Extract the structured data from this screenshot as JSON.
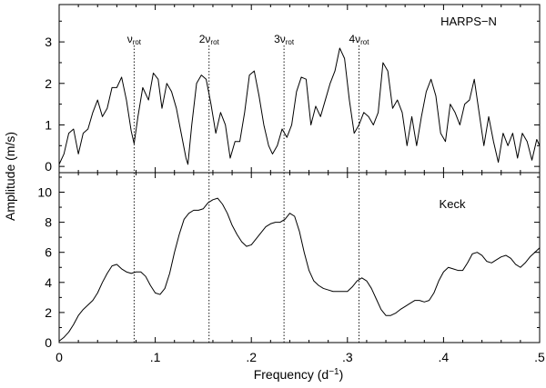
{
  "chart_data": {
    "type": "line",
    "xlabel": {
      "main": "Frequency (d",
      "sup": "−1",
      "end": ")"
    },
    "ylabel": "Amplitude (m/s)",
    "xlim": [
      0,
      0.5
    ],
    "x_ticks": [
      {
        "value": 0,
        "label": "0"
      },
      {
        "value": 0.1,
        "label": ".1"
      },
      {
        "value": 0.2,
        "label": ".2"
      },
      {
        "value": 0.3,
        "label": ".3"
      },
      {
        "value": 0.4,
        "label": ".4"
      },
      {
        "value": 0.5,
        "label": ".5"
      }
    ],
    "harmonics": [
      {
        "prefix": "",
        "symbol": "ν",
        "sub": "rot",
        "x": 0.078
      },
      {
        "prefix": "2",
        "symbol": "ν",
        "sub": "rot",
        "x": 0.156
      },
      {
        "prefix": "3",
        "symbol": "ν",
        "sub": "rot",
        "x": 0.234
      },
      {
        "prefix": "4",
        "symbol": "ν",
        "sub": "rot",
        "x": 0.312
      }
    ],
    "panels": [
      {
        "name": "HARPS−N",
        "ylim": [
          -0.15,
          3.9
        ],
        "y_ticks": [
          0,
          1,
          2,
          3
        ],
        "x": [
          0,
          0.005,
          0.01,
          0.015,
          0.02,
          0.025,
          0.03,
          0.035,
          0.04,
          0.045,
          0.05,
          0.055,
          0.06,
          0.065,
          0.07,
          0.075,
          0.078,
          0.082,
          0.087,
          0.093,
          0.098,
          0.103,
          0.107,
          0.112,
          0.117,
          0.122,
          0.127,
          0.132,
          0.134,
          0.138,
          0.143,
          0.148,
          0.153,
          0.158,
          0.163,
          0.168,
          0.173,
          0.178,
          0.183,
          0.188,
          0.193,
          0.198,
          0.203,
          0.208,
          0.213,
          0.218,
          0.222,
          0.227,
          0.232,
          0.237,
          0.242,
          0.247,
          0.252,
          0.257,
          0.262,
          0.267,
          0.272,
          0.277,
          0.282,
          0.287,
          0.292,
          0.297,
          0.302,
          0.307,
          0.312,
          0.317,
          0.322,
          0.327,
          0.332,
          0.337,
          0.342,
          0.347,
          0.352,
          0.357,
          0.362,
          0.367,
          0.372,
          0.377,
          0.382,
          0.387,
          0.392,
          0.397,
          0.402,
          0.407,
          0.412,
          0.417,
          0.422,
          0.427,
          0.432,
          0.437,
          0.442,
          0.447,
          0.452,
          0.457,
          0.462,
          0.467,
          0.472,
          0.477,
          0.482,
          0.487,
          0.492,
          0.497,
          0.5
        ],
        "y": [
          0.05,
          0.3,
          0.8,
          0.9,
          0.3,
          0.8,
          0.9,
          1.3,
          1.6,
          1.2,
          1.4,
          1.9,
          1.9,
          2.15,
          1.6,
          0.85,
          0.55,
          1.2,
          1.9,
          1.6,
          2.25,
          2.1,
          1.4,
          2.0,
          1.8,
          1.4,
          0.8,
          0.2,
          0.05,
          1.0,
          2.0,
          2.2,
          2.1,
          1.5,
          0.8,
          1.3,
          1.0,
          0.2,
          0.6,
          0.6,
          1.3,
          2.2,
          2.3,
          1.7,
          1.0,
          0.5,
          0.3,
          0.5,
          0.9,
          0.7,
          1.0,
          1.8,
          2.15,
          2.1,
          1.0,
          1.45,
          1.2,
          1.6,
          2.0,
          2.3,
          2.85,
          2.6,
          1.6,
          0.8,
          1.0,
          1.3,
          1.2,
          1.0,
          1.3,
          2.5,
          2.3,
          1.4,
          1.6,
          1.3,
          0.5,
          1.2,
          0.5,
          1.2,
          1.8,
          2.1,
          1.7,
          0.8,
          0.6,
          1.5,
          1.3,
          1.0,
          1.5,
          1.6,
          2.1,
          1.3,
          0.5,
          1.2,
          0.6,
          0.1,
          0.8,
          0.5,
          0.8,
          0.2,
          0.8,
          0.6,
          0.15,
          0.65,
          0.5
        ]
      },
      {
        "name": "Keck",
        "ylim": [
          0,
          11.3
        ],
        "y_ticks": [
          0,
          2,
          4,
          6,
          8,
          10
        ],
        "x": [
          0,
          0.005,
          0.01,
          0.015,
          0.02,
          0.025,
          0.03,
          0.035,
          0.04,
          0.045,
          0.05,
          0.055,
          0.06,
          0.065,
          0.07,
          0.075,
          0.08,
          0.085,
          0.09,
          0.095,
          0.1,
          0.105,
          0.11,
          0.115,
          0.12,
          0.125,
          0.13,
          0.135,
          0.14,
          0.145,
          0.15,
          0.155,
          0.16,
          0.165,
          0.17,
          0.175,
          0.18,
          0.185,
          0.19,
          0.195,
          0.2,
          0.205,
          0.21,
          0.215,
          0.22,
          0.225,
          0.23,
          0.235,
          0.24,
          0.245,
          0.25,
          0.255,
          0.26,
          0.265,
          0.27,
          0.275,
          0.28,
          0.285,
          0.29,
          0.295,
          0.3,
          0.305,
          0.31,
          0.315,
          0.32,
          0.325,
          0.33,
          0.335,
          0.34,
          0.345,
          0.35,
          0.355,
          0.36,
          0.365,
          0.37,
          0.375,
          0.38,
          0.385,
          0.39,
          0.395,
          0.4,
          0.405,
          0.41,
          0.415,
          0.42,
          0.425,
          0.43,
          0.435,
          0.44,
          0.445,
          0.45,
          0.455,
          0.46,
          0.465,
          0.47,
          0.475,
          0.48,
          0.485,
          0.49,
          0.495,
          0.5
        ],
        "y": [
          0.1,
          0.35,
          0.7,
          1.2,
          1.8,
          2.2,
          2.5,
          2.8,
          3.3,
          4.0,
          4.6,
          5.1,
          5.2,
          4.9,
          4.7,
          4.6,
          4.7,
          4.7,
          4.4,
          3.8,
          3.3,
          3.2,
          3.6,
          4.6,
          6.0,
          7.2,
          8.2,
          8.6,
          8.8,
          8.8,
          8.9,
          9.3,
          9.5,
          9.6,
          9.2,
          8.6,
          7.8,
          7.2,
          6.7,
          6.4,
          6.5,
          6.9,
          7.3,
          7.7,
          7.9,
          8.0,
          8.0,
          8.2,
          8.6,
          8.4,
          7.4,
          6.0,
          4.8,
          4.1,
          3.8,
          3.6,
          3.5,
          3.4,
          3.4,
          3.4,
          3.4,
          3.7,
          4.1,
          4.3,
          4.1,
          3.6,
          2.9,
          2.2,
          1.8,
          1.8,
          1.95,
          2.2,
          2.4,
          2.6,
          2.8,
          2.8,
          2.7,
          2.8,
          3.3,
          4.1,
          4.7,
          5.0,
          4.9,
          4.8,
          4.8,
          5.3,
          5.9,
          6.0,
          5.8,
          5.4,
          5.3,
          5.5,
          5.7,
          5.8,
          5.6,
          5.2,
          5.0,
          5.3,
          5.7,
          6.0,
          6.3
        ]
      }
    ]
  }
}
